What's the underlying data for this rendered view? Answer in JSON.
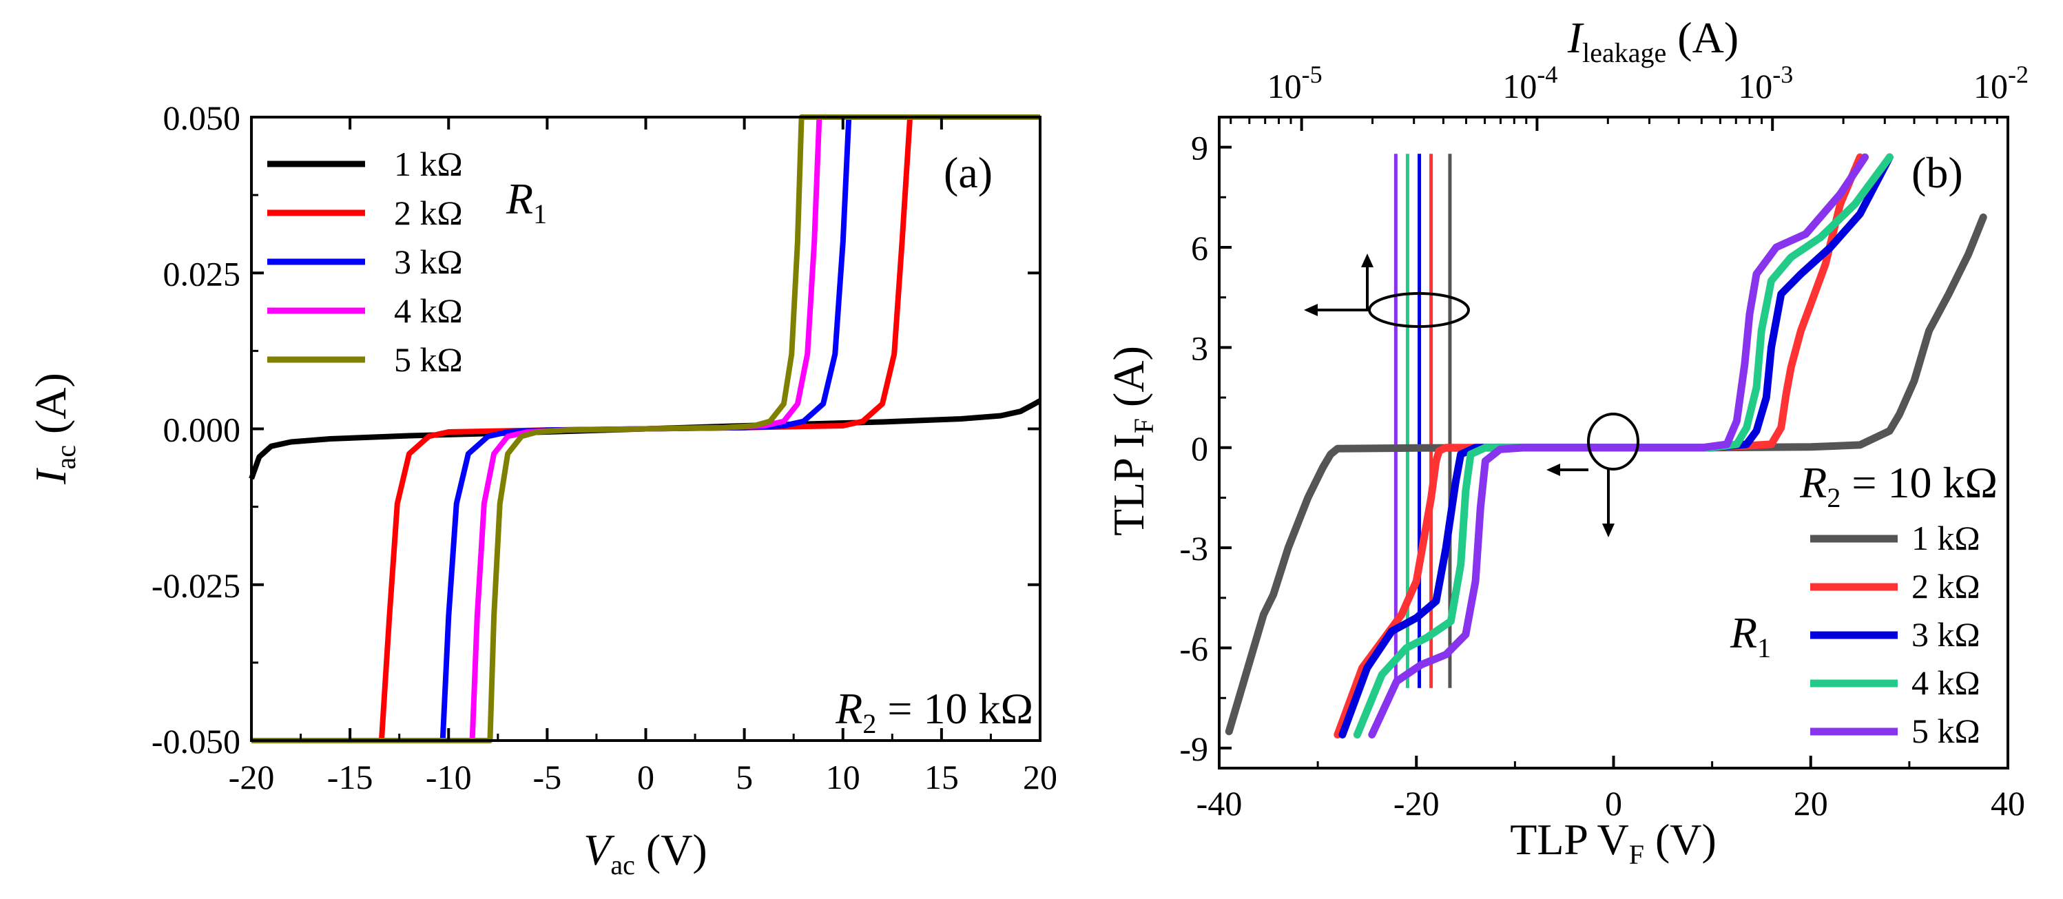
{
  "chart_data": [
    {
      "panel": "(a)",
      "type": "line",
      "xlabel_main": "V",
      "xlabel_sub": "ac",
      "xlabel_unit": " (V)",
      "ylabel_main": "I",
      "ylabel_sub": "ac",
      "ylabel_unit": " (A)",
      "xlim": [
        -20,
        20
      ],
      "ylim": [
        -0.05,
        0.05
      ],
      "xticks": [
        -20,
        -15,
        -10,
        -5,
        0,
        5,
        10,
        15,
        20
      ],
      "xtick_labels": [
        "-20",
        "-15",
        "-10",
        "-5",
        "0",
        "5",
        "10",
        "15",
        "20"
      ],
      "yticks": [
        -0.05,
        -0.025,
        0,
        0.025,
        0.05
      ],
      "ytick_labels": [
        "-0.050",
        "-0.025",
        "0.000",
        "0.025",
        "0.050"
      ],
      "legend_title": "R",
      "legend_title_sub": "1",
      "annotation_main": "R",
      "annotation_sub": "2",
      "annotation_rest": " = 10 kΩ",
      "series": [
        {
          "name": "1 kΩ",
          "color": "#000000",
          "x": [
            -20,
            -19.6,
            -19,
            -18,
            -16,
            -12,
            -5,
            0,
            5,
            12,
            16,
            18,
            19,
            19.6,
            20
          ],
          "y": [
            -0.008,
            -0.0045,
            -0.0028,
            -0.0021,
            -0.0016,
            -0.0011,
            -0.0005,
            0,
            0.0005,
            0.0011,
            0.0016,
            0.0021,
            0.0028,
            0.0038,
            0.0045
          ]
        },
        {
          "name": "2 kΩ",
          "color": "#ff0000",
          "x": [
            -20,
            -13.4,
            -13.0,
            -12.6,
            -12.0,
            -11.0,
            -10.0,
            -5,
            0,
            5,
            10.0,
            11.0,
            12.0,
            12.6,
            13.0,
            13.4,
            20
          ],
          "y": [
            -0.05,
            -0.05,
            -0.03,
            -0.012,
            -0.004,
            -0.0012,
            -0.0005,
            -0.0002,
            0,
            0.0002,
            0.0005,
            0.0012,
            0.004,
            0.012,
            0.03,
            0.05,
            0.05
          ]
        },
        {
          "name": "3 kΩ",
          "color": "#0000ff",
          "x": [
            -20,
            -10.3,
            -10.0,
            -9.6,
            -9.0,
            -8.0,
            -7.0,
            -5,
            0,
            5,
            7.0,
            8.0,
            9.0,
            9.6,
            10.0,
            10.3,
            20
          ],
          "y": [
            -0.05,
            -0.05,
            -0.03,
            -0.012,
            -0.004,
            -0.0012,
            -0.0005,
            -0.0002,
            0,
            0.0002,
            0.0005,
            0.0012,
            0.004,
            0.012,
            0.03,
            0.05,
            0.05
          ]
        },
        {
          "name": "4 kΩ",
          "color": "#ff00ff",
          "x": [
            -20,
            -8.8,
            -8.55,
            -8.2,
            -7.7,
            -7.0,
            -6.0,
            -4,
            0,
            4,
            6.0,
            7.0,
            7.7,
            8.2,
            8.55,
            8.8,
            20
          ],
          "y": [
            -0.05,
            -0.05,
            -0.03,
            -0.012,
            -0.004,
            -0.0012,
            -0.0005,
            -0.0002,
            0,
            0.0002,
            0.0005,
            0.0012,
            0.004,
            0.012,
            0.03,
            0.05,
            0.05
          ]
        },
        {
          "name": "5 kΩ",
          "color": "#808000",
          "x": [
            -20,
            -7.9,
            -7.7,
            -7.4,
            -7.0,
            -6.3,
            -5.5,
            -4,
            0,
            4,
            5.5,
            6.3,
            7.0,
            7.4,
            7.7,
            7.9,
            20
          ],
          "y": [
            -0.05,
            -0.05,
            -0.03,
            -0.012,
            -0.004,
            -0.0012,
            -0.0005,
            -0.0002,
            0,
            0.0002,
            0.0005,
            0.0012,
            0.004,
            0.012,
            0.03,
            0.05,
            0.05
          ]
        }
      ]
    },
    {
      "panel": "(b)",
      "type": "line",
      "xlabel_main": "TLP V",
      "xlabel_sub": "F",
      "xlabel_unit": " (V)",
      "ylabel_main": "TLP I",
      "ylabel_sub": "F",
      "ylabel_unit": " (A)",
      "top_xlabel_main": "I",
      "top_xlabel_sub": "leakage",
      "top_xlabel_unit": " (A)",
      "xlim": [
        -40,
        40
      ],
      "ylim": [
        -9.6,
        9.9
      ],
      "xticks": [
        -40,
        -20,
        0,
        20,
        40
      ],
      "xtick_labels": [
        "-40",
        "-20",
        "0",
        "20",
        "40"
      ],
      "yticks": [
        -9,
        -6,
        -3,
        0,
        3,
        6,
        9
      ],
      "ytick_labels": [
        "-9",
        "-6",
        "-3",
        "0",
        "3",
        "6",
        "9"
      ],
      "top_xlim_log10": [
        -5.35,
        -2.0
      ],
      "top_xticks_exponent": [
        -5,
        -4,
        -3,
        -2
      ],
      "top_xtick_base": "10",
      "top_xtick_exponent_labels": [
        "-5",
        "-4",
        "-3",
        "-2"
      ],
      "legend_title": "R",
      "legend_title_sub": "1",
      "annotation_main": "R",
      "annotation_sub": "2",
      "annotation_rest": " = 10 kΩ",
      "series": [
        {
          "name": "1 kΩ",
          "color": "#555555",
          "x": [
            -39,
            -37,
            -35.5,
            -34.5,
            -33,
            -31,
            -29.5,
            -28.7,
            -28,
            -20,
            -10,
            0,
            10,
            20,
            25,
            28,
            29,
            30.5,
            32,
            34,
            36,
            37.5
          ],
          "y": [
            -8.5,
            -6.5,
            -5,
            -4.4,
            -3,
            -1.5,
            -0.6,
            -0.2,
            -0.03,
            -0.01,
            0,
            0,
            0,
            0.02,
            0.08,
            0.5,
            1,
            2,
            3.5,
            4.6,
            5.8,
            6.9
          ]
        },
        {
          "name": "2 kΩ",
          "color": "#ff3333",
          "x": [
            -28,
            -25.5,
            -23,
            -21.5,
            -20,
            -18.5,
            -18,
            -17.7,
            -17,
            -10,
            0,
            10,
            16,
            17,
            17.5,
            18,
            19,
            20,
            21.5,
            23,
            25
          ],
          "y": [
            -8.6,
            -6.6,
            -5.6,
            -5,
            -4,
            -1.5,
            -0.4,
            -0.1,
            0,
            0,
            0,
            0,
            0.1,
            0.6,
            1.6,
            2.4,
            3.5,
            4.3,
            5.5,
            7.3,
            8.7
          ]
        },
        {
          "name": "3 kΩ",
          "color": "#0000dd",
          "x": [
            -27.5,
            -25,
            -22.5,
            -20,
            -18,
            -17,
            -16,
            -15.5,
            -14,
            -10,
            0,
            10,
            13.5,
            14.5,
            15.5,
            16,
            17,
            19,
            22,
            25,
            28
          ],
          "y": [
            -8.6,
            -6.6,
            -5.5,
            -5.1,
            -4.6,
            -3,
            -1,
            -0.2,
            0,
            0,
            0,
            0,
            0.1,
            0.5,
            1.5,
            3,
            4.6,
            5.2,
            6,
            7,
            8.7
          ]
        },
        {
          "name": "4 kΩ",
          "color": "#22cc88",
          "x": [
            -26,
            -23.5,
            -21,
            -19,
            -16.5,
            -15.5,
            -15,
            -14.5,
            -13,
            -10,
            0,
            10,
            12.5,
            13.5,
            14.5,
            15,
            16,
            18,
            21,
            24.5,
            28
          ],
          "y": [
            -8.6,
            -6.8,
            -6,
            -5.7,
            -5.2,
            -3.5,
            -1.3,
            -0.2,
            0,
            0,
            0,
            0,
            0.1,
            0.6,
            1.8,
            3.5,
            5,
            5.7,
            6.3,
            7.3,
            8.7
          ]
        },
        {
          "name": "5 kΩ",
          "color": "#8833ee",
          "x": [
            -24.5,
            -22,
            -19.5,
            -17,
            -15,
            -14,
            -13.5,
            -13,
            -11.5,
            -9,
            0,
            9,
            11.5,
            12.5,
            13.3,
            13.8,
            14.5,
            16.5,
            19.5,
            23,
            25.5
          ],
          "y": [
            -8.6,
            -7,
            -6.5,
            -6.2,
            -5.6,
            -4,
            -1.8,
            -0.4,
            -0.05,
            0,
            0,
            0,
            0.1,
            0.8,
            2.5,
            4,
            5.2,
            6,
            6.4,
            7.6,
            8.7
          ]
        }
      ],
      "leakage_lines": [
        {
          "name": "5 kΩ",
          "color": "#8833ee",
          "log10_I": -4.6
        },
        {
          "name": "4 kΩ",
          "color": "#22cc88",
          "log10_I": -4.55
        },
        {
          "name": "3 kΩ",
          "color": "#0000dd",
          "log10_I": -4.5
        },
        {
          "name": "2 kΩ",
          "color": "#ff3333",
          "log10_I": -4.45
        },
        {
          "name": "1 kΩ",
          "color": "#555555",
          "log10_I": -4.37
        }
      ],
      "leakage_line_ylim": [
        -7.2,
        8.8
      ]
    }
  ]
}
